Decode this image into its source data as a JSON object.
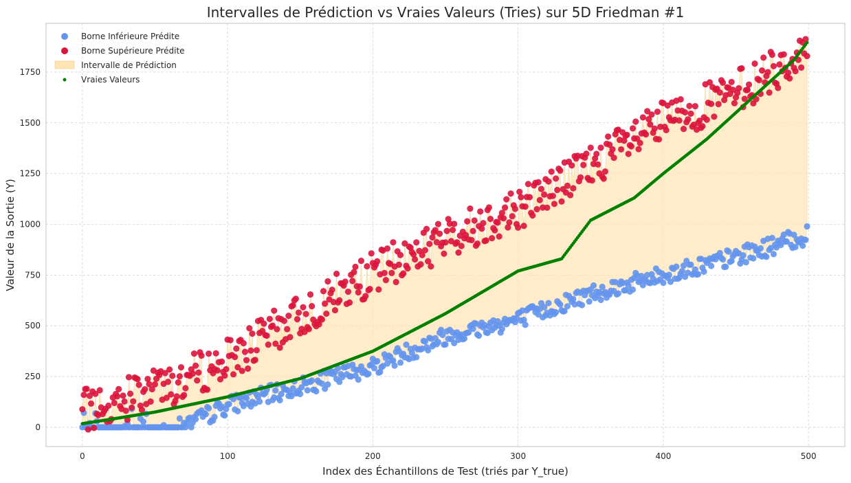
{
  "chart_data": {
    "type": "scatter",
    "title": "Intervalles de Prédiction vs Vraies Valeurs (Tries) sur 5D Friedman #1",
    "xlabel": "Index des Échantillons de Test (triés par Y_true)",
    "ylabel": "Valeur de la Sortie (Y)",
    "xlim": [
      -25,
      525
    ],
    "ylim": [
      -95,
      1990
    ],
    "xticks": [
      0,
      100,
      200,
      300,
      400,
      500
    ],
    "yticks": [
      0,
      250,
      500,
      750,
      1000,
      1250,
      1500,
      1750
    ],
    "grid": true,
    "legend_position": "top-left",
    "n_points": 500,
    "colors": {
      "lower": "#6495ED",
      "upper": "#DC143C",
      "interval": "#FFE4B5",
      "true": "#008000"
    },
    "series": [
      {
        "name": "Borne Inférieure Prédite",
        "kind": "scatter",
        "x_range": [
          0,
          499
        ],
        "y_knots": [
          [
            0,
            0
          ],
          [
            70,
            0
          ],
          [
            100,
            110
          ],
          [
            150,
            200
          ],
          [
            200,
            300
          ],
          [
            250,
            450
          ],
          [
            300,
            530
          ],
          [
            350,
            660
          ],
          [
            400,
            750
          ],
          [
            450,
            840
          ],
          [
            499,
            945
          ]
        ],
        "note_y": "approximate trend with scatter, clipped at 0 for first ~70 samples"
      },
      {
        "name": "Borne Supérieure Prédite",
        "kind": "scatter",
        "x_range": [
          0,
          499
        ],
        "y_knots": [
          [
            0,
            80
          ],
          [
            50,
            180
          ],
          [
            100,
            330
          ],
          [
            150,
            550
          ],
          [
            200,
            760
          ],
          [
            250,
            930
          ],
          [
            300,
            1080
          ],
          [
            350,
            1290
          ],
          [
            400,
            1500
          ],
          [
            450,
            1650
          ],
          [
            499,
            1850
          ]
        ]
      },
      {
        "name": "Intervalle de Prédiction",
        "kind": "band",
        "between": [
          "Borne Inférieure Prédite",
          "Borne Supérieure Prédite"
        ]
      },
      {
        "name": "Vraies Valeurs",
        "kind": "scatter",
        "x_range": [
          0,
          499
        ],
        "y_knots": [
          [
            0,
            18
          ],
          [
            20,
            40
          ],
          [
            50,
            75
          ],
          [
            100,
            150
          ],
          [
            150,
            240
          ],
          [
            200,
            375
          ],
          [
            250,
            560
          ],
          [
            300,
            770
          ],
          [
            330,
            830
          ],
          [
            350,
            1020
          ],
          [
            380,
            1130
          ],
          [
            400,
            1250
          ],
          [
            430,
            1420
          ],
          [
            450,
            1550
          ],
          [
            470,
            1680
          ],
          [
            490,
            1810
          ],
          [
            499,
            1895
          ]
        ]
      }
    ]
  }
}
